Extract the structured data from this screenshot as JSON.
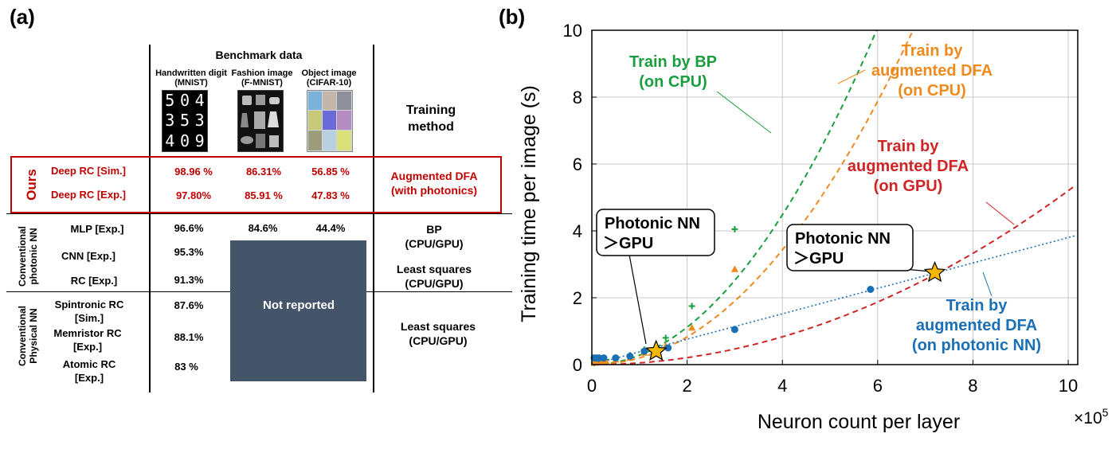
{
  "panel_a": {
    "label": "(a)",
    "header": "Benchmark data",
    "datasets": [
      {
        "line1": "Handwritten digit",
        "line2": "(MNIST)"
      },
      {
        "line1": "Fashion image",
        "line2": "(F-MNIST)"
      },
      {
        "line1": "Object image",
        "line2": "(CIFAR-10)"
      }
    ],
    "training_method_line1": "Training",
    "training_method_line2": "method",
    "mnist_digits": [
      "5",
      "0",
      "4",
      "3",
      "5",
      "3",
      "4",
      "0",
      "9"
    ],
    "groups": {
      "ours": "Ours",
      "photonic_line1": "Conventional",
      "photonic_line2": "photonic NN",
      "physical_line1": "Conventional",
      "physical_line2": "Physical NN"
    },
    "rows": [
      {
        "name": "Deep RC [Sim.]",
        "mnist": "98.96 %",
        "fmnist": "86.31%",
        "cifar": "56.85 %"
      },
      {
        "name": "Deep RC [Exp.]",
        "mnist": "97.80%",
        "fmnist": "85.91 %",
        "cifar": "47.83 %"
      },
      {
        "name": "MLP [Exp.]",
        "mnist": "96.6%",
        "fmnist": "84.6%",
        "cifar": "44.4%"
      },
      {
        "name": "CNN [Exp.]",
        "mnist": "95.3%"
      },
      {
        "name": "RC [Exp.]",
        "mnist": "91.3%"
      },
      {
        "name1": "Spintronic RC",
        "name2": "[Sim.]",
        "mnist": "87.6%"
      },
      {
        "name1": "Memristor RC",
        "name2": "[Exp.]",
        "mnist": "88.1%"
      },
      {
        "name1": "Atomic RC",
        "name2": "[Exp.]",
        "mnist": "83 %"
      }
    ],
    "methods": {
      "ours_line1": "Augmented DFA",
      "ours_line2": "(with photonics)",
      "bp_line1": "BP",
      "bp_line2": "(CPU/GPU)",
      "ls1_line1": "Least squares",
      "ls1_line2": "(CPU/GPU)",
      "ls2_line1": "Least squares",
      "ls2_line2": "(CPU/GPU)"
    },
    "not_reported": "Not reported"
  },
  "chart_data": {
    "type": "scatter",
    "panel_label": "(b)",
    "xlabel": "Neuron count per layer",
    "x_multiplier": "×10",
    "x_multiplier_exp": "5",
    "ylabel": "Training time per image (s)",
    "xlim": [
      0,
      10.2
    ],
    "ylim": [
      0,
      10
    ],
    "x_ticks": [
      0,
      2,
      4,
      6,
      8,
      10
    ],
    "y_ticks": [
      0,
      2,
      4,
      6,
      8,
      10
    ],
    "grid": true,
    "series": [
      {
        "name": "Train by BP (on CPU)",
        "color": "#1a9e3f",
        "marker": "cross",
        "fit": "dashed",
        "points": [
          [
            0.05,
            0.05
          ],
          [
            0.1,
            0.07
          ],
          [
            0.2,
            0.1
          ],
          [
            0.3,
            0.15
          ],
          [
            0.5,
            0.2
          ],
          [
            0.8,
            0.28
          ],
          [
            1.1,
            0.45
          ],
          [
            1.55,
            0.8
          ],
          [
            2.1,
            1.75
          ],
          [
            3.0,
            4.05
          ]
        ],
        "curve_coef": 0.28,
        "curve_exp": 2.0
      },
      {
        "name": "Train by augmented DFA (on CPU)",
        "color": "#ee8a1e",
        "marker": "triangle",
        "fit": "dashed",
        "points": [
          [
            0.05,
            0.05
          ],
          [
            0.1,
            0.06
          ],
          [
            0.2,
            0.08
          ],
          [
            0.3,
            0.1
          ],
          [
            0.5,
            0.15
          ],
          [
            0.8,
            0.2
          ],
          [
            1.1,
            0.35
          ],
          [
            1.55,
            0.55
          ],
          [
            2.1,
            1.1
          ],
          [
            3.0,
            2.85
          ]
        ],
        "curve_coef": 0.2,
        "curve_exp": 2.05
      },
      {
        "name": "Train by augmented DFA (on GPU)",
        "color": "#d02525",
        "marker": "none",
        "fit": "dashed",
        "points": [],
        "curve_coef": 0.052,
        "curve_exp": 2.0
      },
      {
        "name": "Train by augmented DFA (on photonic NN)",
        "color": "#1b6fb5",
        "marker": "circle",
        "fit": "dotted",
        "points": [
          [
            0.05,
            0.2
          ],
          [
            0.1,
            0.2
          ],
          [
            0.15,
            0.2
          ],
          [
            0.25,
            0.2
          ],
          [
            0.5,
            0.2
          ],
          [
            0.8,
            0.25
          ],
          [
            1.1,
            0.4
          ],
          [
            1.6,
            0.5
          ],
          [
            3.0,
            1.05
          ],
          [
            5.85,
            2.25
          ]
        ],
        "line_slope": 0.38,
        "line_intercept": 0.0
      }
    ],
    "annotations": [
      {
        "text": "Train by BP",
        "text2": "(on CPU)",
        "color": "#1a9e3f"
      },
      {
        "text": "Train by",
        "text2": "augmented DFA",
        "text3": "(on CPU)",
        "color": "#ee8a1e"
      },
      {
        "text": "Train by",
        "text2": "augmented DFA",
        "text3": "(on GPU)",
        "color": "#d02525"
      },
      {
        "text": "Train by",
        "text2": "augmented DFA",
        "text3": "(on photonic NN)",
        "color": "#1b6fb5"
      }
    ],
    "callouts": [
      {
        "line1": "Photonic NN",
        "line2": "＞GPU",
        "star_x": 1.35,
        "star_y": 0.4
      },
      {
        "line1": "Photonic NN",
        "line2": "＞GPU",
        "star_x": 7.2,
        "star_y": 2.75
      }
    ],
    "star_color": "#f5b700"
  }
}
